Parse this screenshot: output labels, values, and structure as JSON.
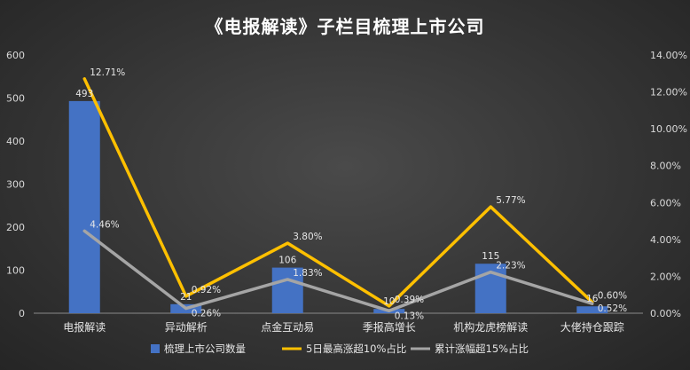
{
  "chart_data": {
    "type": "bar",
    "title": "《电报解读》子栏目梳理上市公司",
    "categories": [
      "电报解读",
      "异动解析",
      "点金互动易",
      "季报高增长",
      "机构龙虎榜解读",
      "大佬持仓跟踪"
    ],
    "series": [
      {
        "name": "梳理上市公司数量",
        "type": "bar",
        "axis": "left",
        "color": "#4472c4",
        "values": [
          493,
          21,
          106,
          10,
          115,
          16
        ],
        "labels": [
          "493",
          "21",
          "106",
          "10",
          "115",
          "16"
        ]
      },
      {
        "name": "5日最高涨超10%占比",
        "type": "line",
        "axis": "right",
        "color": "#ffc000",
        "values": [
          12.71,
          0.92,
          3.8,
          0.39,
          5.77,
          0.6
        ],
        "labels": [
          "12.71%",
          "0.92%",
          "3.80%",
          "0.39%",
          "5.77%",
          "0.60%"
        ]
      },
      {
        "name": "累计涨幅超15%占比",
        "type": "line",
        "axis": "right",
        "color": "#a5a5a5",
        "values": [
          4.46,
          0.26,
          1.83,
          0.13,
          2.23,
          0.52
        ],
        "labels": [
          "4.46%",
          "0.26%",
          "1.83%",
          "0.13%",
          "2.23%",
          "0.52%"
        ]
      }
    ],
    "ylim_left": [
      0,
      600
    ],
    "yticks_left": [
      "0",
      "100",
      "200",
      "300",
      "400",
      "500",
      "600"
    ],
    "ylim_right": [
      0,
      14
    ],
    "yticks_right": [
      "0.00%",
      "2.00%",
      "4.00%",
      "6.00%",
      "8.00%",
      "10.00%",
      "12.00%",
      "14.00%"
    ],
    "grid": false,
    "legend": "bottom"
  }
}
